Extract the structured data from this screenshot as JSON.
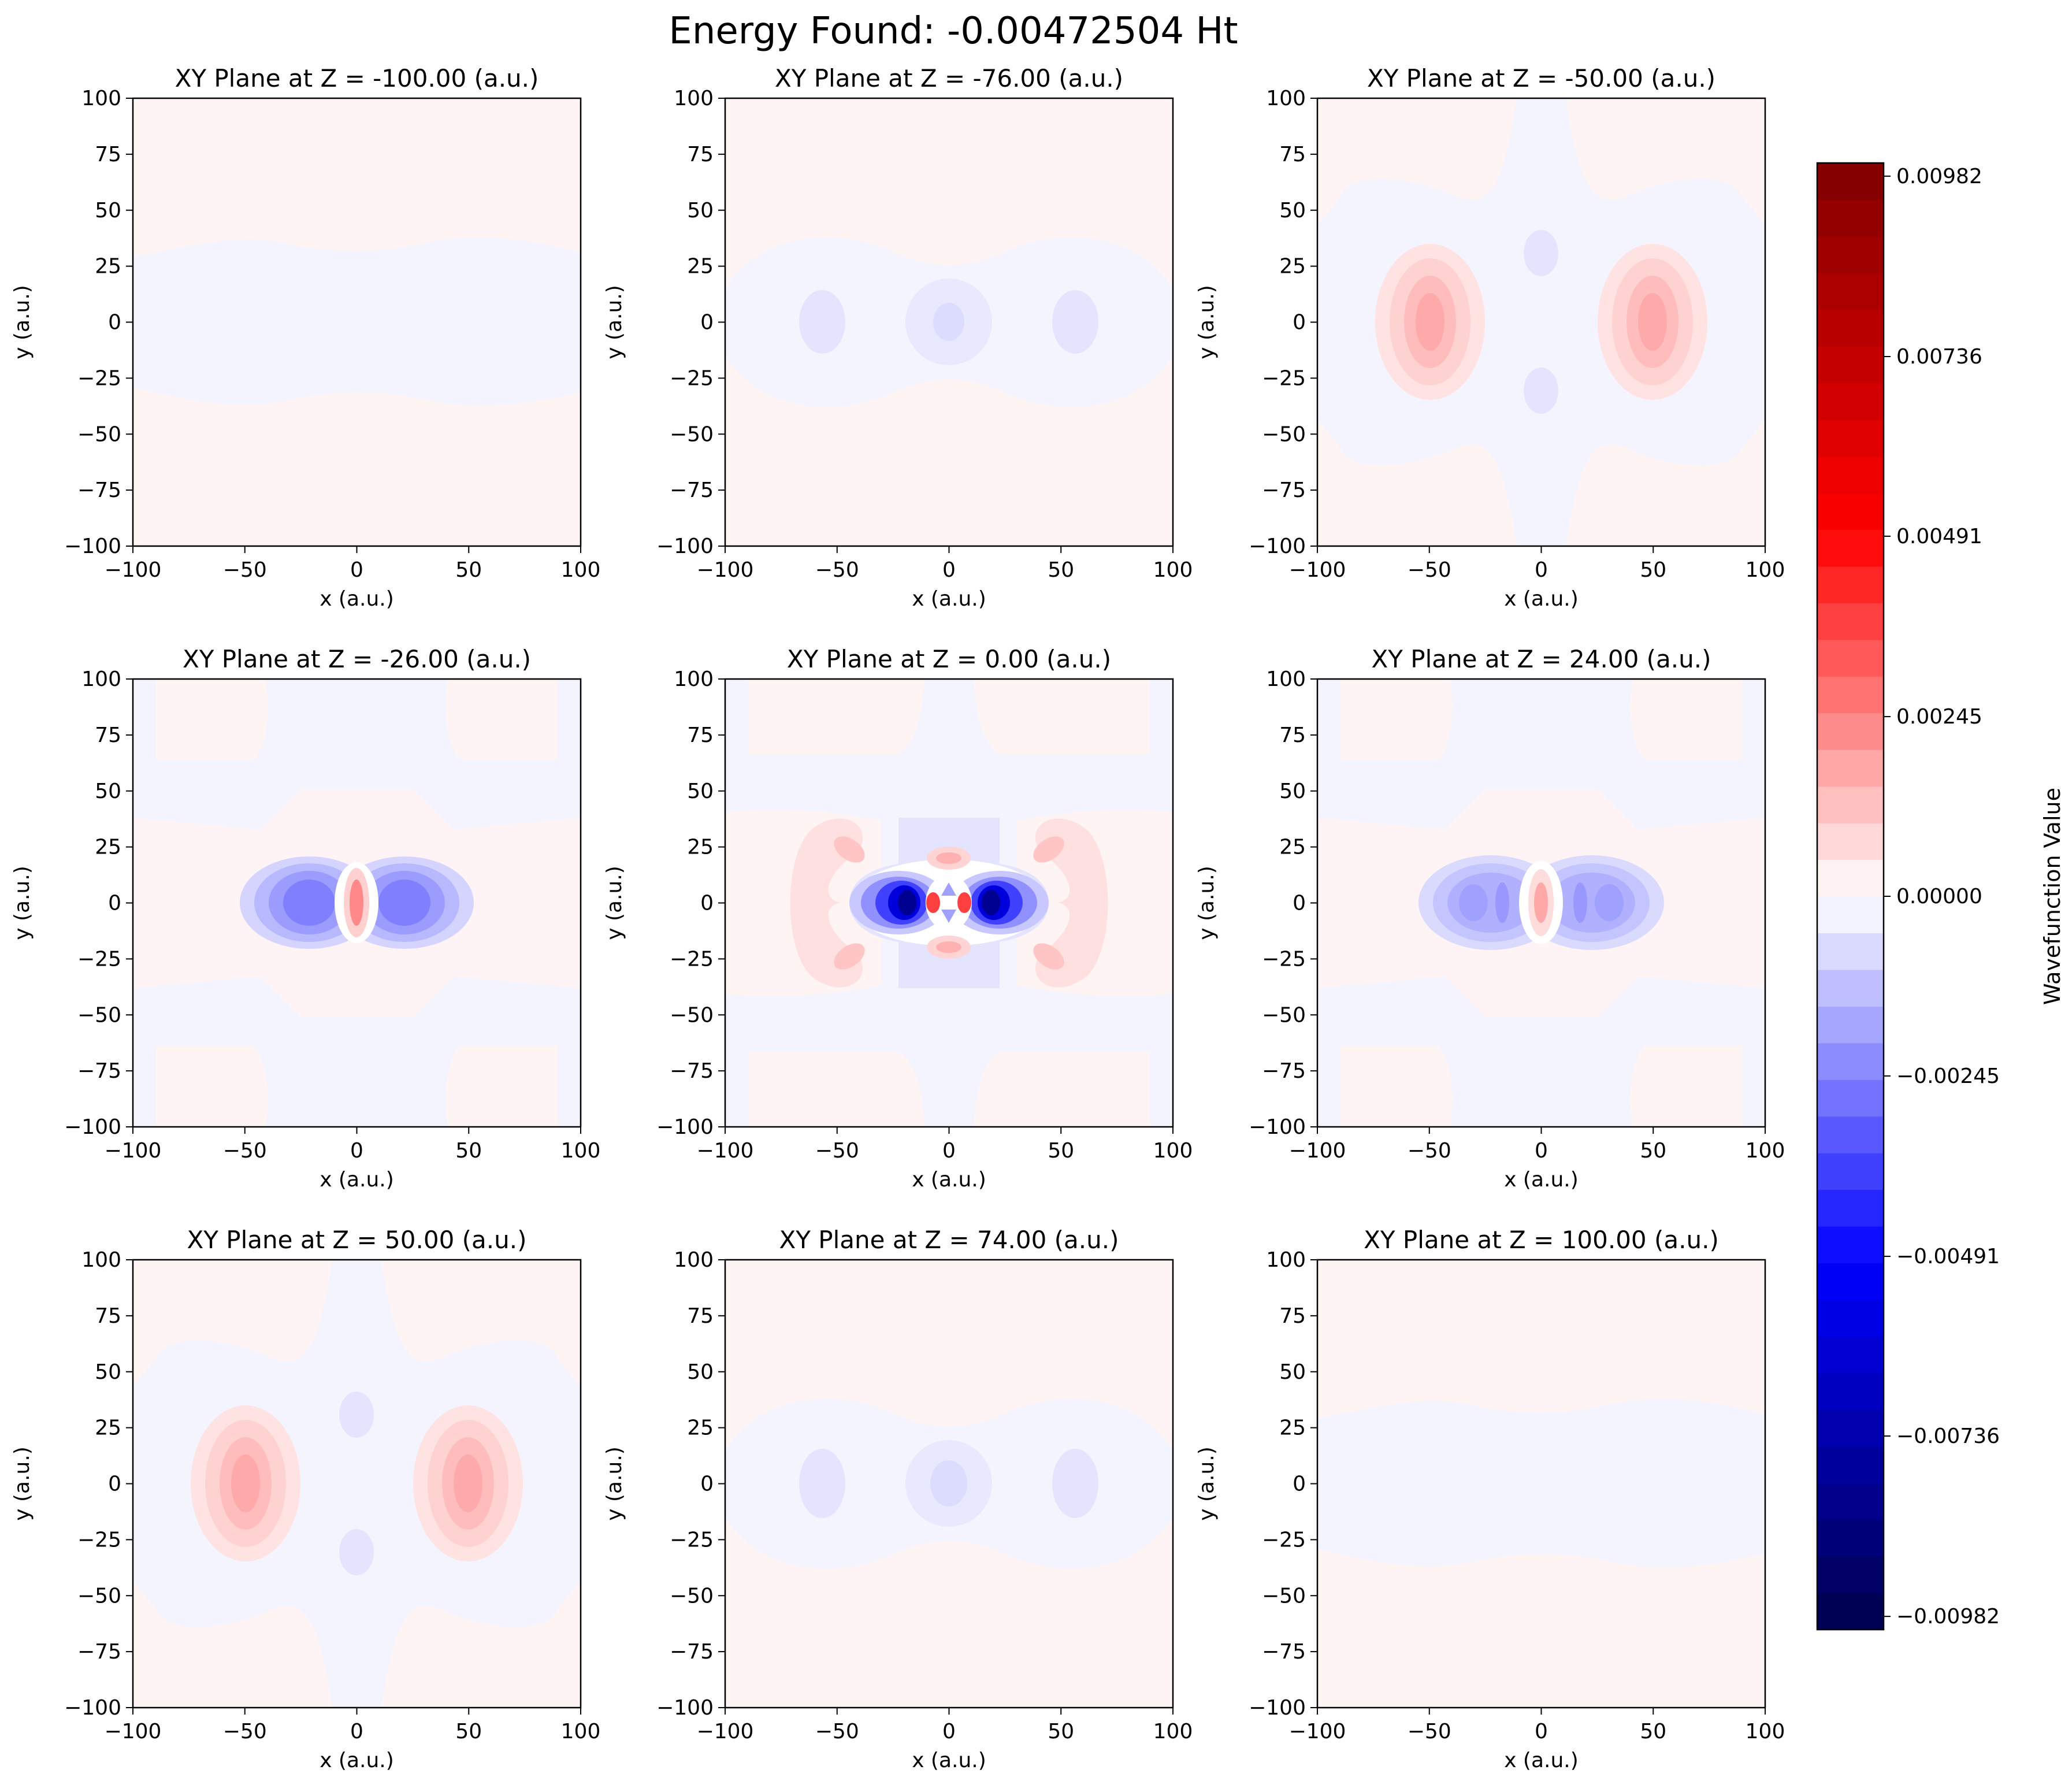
{
  "figure": {
    "suptitle": "Energy Found: -0.00472504 Ht"
  },
  "chart_data": {
    "type": "heatmap",
    "description": "3x3 grid of contour-filled heatmaps (filled contours, seismic colormap)",
    "subplots": [
      {
        "title": "XY Plane at Z = -100.00 (a.u.)",
        "z": -100.0,
        "xlabel": "x (a.u.)",
        "ylabel": "y (a.u.)"
      },
      {
        "title": "XY Plane at Z = -76.00 (a.u.)",
        "z": -76.0,
        "xlabel": "x (a.u.)",
        "ylabel": "y (a.u.)"
      },
      {
        "title": "XY Plane at Z = -50.00 (a.u.)",
        "z": -50.0,
        "xlabel": "x (a.u.)",
        "ylabel": "y (a.u.)"
      },
      {
        "title": "XY Plane at Z = -26.00 (a.u.)",
        "z": -26.0,
        "xlabel": "x (a.u.)",
        "ylabel": "y (a.u.)"
      },
      {
        "title": "XY Plane at Z = 0.00 (a.u.)",
        "z": 0.0,
        "xlabel": "x (a.u.)",
        "ylabel": "y (a.u.)"
      },
      {
        "title": "XY Plane at Z = 24.00 (a.u.)",
        "z": 24.0,
        "xlabel": "x (a.u.)",
        "ylabel": "y (a.u.)"
      },
      {
        "title": "XY Plane at Z = 50.00 (a.u.)",
        "z": 50.0,
        "xlabel": "x (a.u.)",
        "ylabel": "y (a.u.)"
      },
      {
        "title": "XY Plane at Z = 74.00 (a.u.)",
        "z": 74.0,
        "xlabel": "x (a.u.)",
        "ylabel": "y (a.u.)"
      },
      {
        "title": "XY Plane at Z = 100.00 (a.u.)",
        "z": 100.0,
        "xlabel": "x (a.u.)",
        "ylabel": "y (a.u.)"
      }
    ],
    "xlim": [
      -100,
      100
    ],
    "ylim": [
      -100,
      100
    ],
    "xticks": [
      -100,
      -50,
      0,
      50,
      100
    ],
    "yticks": [
      -100,
      -75,
      -50,
      -25,
      0,
      25,
      50,
      75,
      100
    ],
    "xtick_labels": [
      "−100",
      "−50",
      "0",
      "50",
      "100"
    ],
    "ytick_labels": [
      "−100",
      "−75",
      "−50",
      "−25",
      "0",
      "25",
      "50",
      "75",
      "100"
    ],
    "colorbar": {
      "label": "Wavefunction Value",
      "vmin": -0.01,
      "vmax": 0.01,
      "levels": 40,
      "colormap": "seismic",
      "colormap_stops": [
        "#00004c",
        "#0000ff",
        "#ffffff",
        "#ff0000",
        "#7f0000"
      ],
      "ticks": [
        0.00982,
        0.00736,
        0.00491,
        0.00245,
        0.0,
        -0.00245,
        -0.00491,
        -0.00736,
        -0.00982
      ],
      "tick_labels": [
        "0.00982",
        "0.00736",
        "0.00491",
        "0.00245",
        "0.00000",
        "−0.00245",
        "−0.00491",
        "−0.00736",
        "−0.00982"
      ]
    }
  }
}
